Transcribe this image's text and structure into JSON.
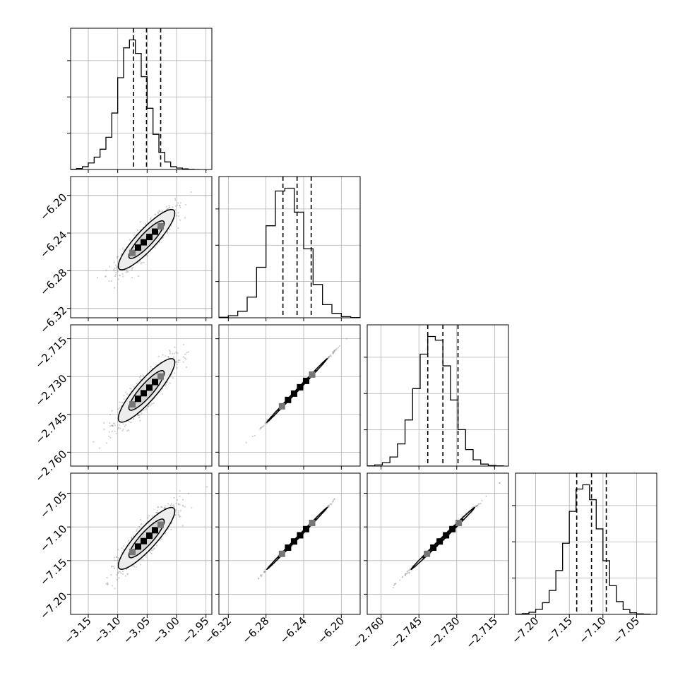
{
  "chart_data": {
    "type": "corner",
    "grid": true,
    "colors": {
      "axes": "#000000",
      "grid": "#b0b0b0",
      "points": "#9a9a9a",
      "contour_fill": "#ededed",
      "contour_line": "#000000",
      "hist_line": "#000000",
      "density_dark": "#000000",
      "density_mid": "#777777"
    },
    "parameters": [
      {
        "range": [
          -3.18,
          -2.94
        ],
        "ticks": [
          -3.15,
          -3.1,
          -3.05,
          -3.0,
          -2.95
        ],
        "tick_labels": [
          "−3.15",
          "−3.10",
          "−3.05",
          "−3.00",
          "−2.95"
        ],
        "quantiles": [
          -3.073,
          -3.051,
          -3.027
        ],
        "hist_bins": [
          -3.18,
          -3.17,
          -3.16,
          -3.15,
          -3.14,
          -3.13,
          -3.12,
          -3.11,
          -3.1,
          -3.09,
          -3.08,
          -3.07,
          -3.06,
          -3.05,
          -3.04,
          -3.03,
          -3.02,
          -3.01,
          -3.0,
          -2.99,
          -2.98,
          -2.97,
          -2.96
        ],
        "hist_counts": [
          1,
          5,
          14,
          33,
          62,
          102,
          162,
          284,
          462,
          612,
          652,
          584,
          467,
          308,
          177,
          86,
          38,
          14,
          7,
          3,
          1,
          0
        ]
      },
      {
        "range": [
          -6.33,
          -6.18
        ],
        "ticks": [
          -6.32,
          -6.28,
          -6.24,
          -6.2
        ],
        "tick_labels": [
          "−6.32",
          "−6.28",
          "−6.24",
          "−6.20"
        ],
        "quantiles": [
          -6.262,
          -6.247,
          -6.232
        ],
        "hist_bins": [
          -6.33,
          -6.32,
          -6.31,
          -6.3,
          -6.29,
          -6.28,
          -6.27,
          -6.26,
          -6.25,
          -6.24,
          -6.23,
          -6.22,
          -6.21,
          -6.2,
          -6.19,
          -6.18
        ],
        "hist_counts": [
          2,
          9,
          28,
          88,
          215,
          392,
          540,
          552,
          450,
          294,
          142,
          56,
          19,
          5,
          1
        ]
      },
      {
        "range": [
          -2.7655,
          -2.7095
        ],
        "ticks": [
          -2.76,
          -2.745,
          -2.73,
          -2.715
        ],
        "tick_labels": [
          "−2.760",
          "−2.745",
          "−2.730",
          "−2.715"
        ],
        "quantiles": [
          -2.7415,
          -2.7355,
          -2.7295
        ],
        "hist_bins": [
          -2.7655,
          -2.7625,
          -2.7595,
          -2.7565,
          -2.7535,
          -2.7505,
          -2.7475,
          -2.7445,
          -2.7415,
          -2.7385,
          -2.7355,
          -2.7325,
          -2.7295,
          -2.7265,
          -2.7235,
          -2.7205,
          -2.7175,
          -2.7145,
          -2.7115
        ],
        "hist_counts": [
          1,
          4,
          12,
          32,
          78,
          162,
          272,
          393,
          455,
          442,
          352,
          232,
          128,
          58,
          22,
          7,
          2,
          1
        ]
      },
      {
        "range": [
          -7.23,
          -7.02
        ],
        "ticks": [
          -7.2,
          -7.15,
          -7.1,
          -7.05
        ],
        "tick_labels": [
          "−7.20",
          "−7.15",
          "−7.10",
          "−7.05"
        ],
        "quantiles": [
          -7.139,
          -7.117,
          -7.095
        ],
        "hist_bins": [
          -7.23,
          -7.22,
          -7.21,
          -7.2,
          -7.19,
          -7.18,
          -7.17,
          -7.16,
          -7.15,
          -7.14,
          -7.13,
          -7.12,
          -7.11,
          -7.1,
          -7.09,
          -7.08,
          -7.07,
          -7.06,
          -7.05,
          -7.04,
          -7.03
        ],
        "hist_counts": [
          1,
          3,
          8,
          19,
          44,
          90,
          165,
          268,
          388,
          472,
          488,
          432,
          322,
          202,
          108,
          48,
          18,
          6,
          2,
          1
        ]
      }
    ],
    "pairs": [
      {
        "x": 0,
        "y": 1,
        "corr": 0.88,
        "center": [
          -3.051,
          -6.247
        ],
        "sd": [
          0.024,
          0.016
        ]
      },
      {
        "x": 0,
        "y": 2,
        "corr": 0.88,
        "center": [
          -3.051,
          -2.7355
        ],
        "sd": [
          0.024,
          0.0063
        ]
      },
      {
        "x": 1,
        "y": 2,
        "corr": 0.999,
        "center": [
          -6.247,
          -2.7355
        ],
        "sd": [
          0.016,
          0.0063
        ]
      },
      {
        "x": 0,
        "y": 3,
        "corr": 0.88,
        "center": [
          -3.051,
          -7.117
        ],
        "sd": [
          0.024,
          0.023
        ]
      },
      {
        "x": 1,
        "y": 3,
        "corr": 0.999,
        "center": [
          -6.247,
          -7.117
        ],
        "sd": [
          0.016,
          0.023
        ]
      },
      {
        "x": 2,
        "y": 3,
        "corr": 0.998,
        "center": [
          -2.7355,
          -7.117
        ],
        "sd": [
          0.0063,
          0.023
        ]
      }
    ]
  }
}
